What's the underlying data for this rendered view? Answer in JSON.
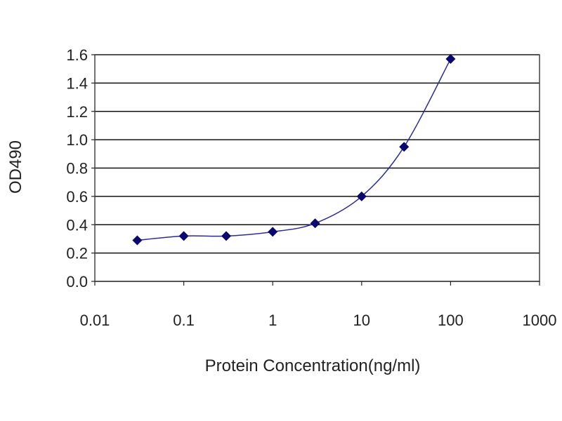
{
  "chart_data": {
    "type": "scatter",
    "xlabel": "Protein Concentration(ng/ml)",
    "ylabel": "OD490",
    "x_scale": "log",
    "xlim": [
      0.01,
      1000
    ],
    "ylim": [
      0.0,
      1.6
    ],
    "x_tick_labels": [
      "0.01",
      "0.1",
      "1",
      "10",
      "100",
      "1000"
    ],
    "x_tick_values": [
      0.01,
      0.1,
      1,
      10,
      100,
      1000
    ],
    "y_tick_labels": [
      "0.0",
      "0.2",
      "0.4",
      "0.6",
      "0.8",
      "1.0",
      "1.2",
      "1.4",
      "1.6"
    ],
    "y_tick_values": [
      0.0,
      0.2,
      0.4,
      0.6,
      0.8,
      1.0,
      1.2,
      1.4,
      1.6
    ],
    "grid": "horizontal",
    "legend": "none",
    "series": [
      {
        "x": [
          0.03,
          0.1,
          0.3,
          1,
          3,
          10,
          30,
          100
        ],
        "y": [
          0.29,
          0.32,
          0.32,
          0.35,
          0.41,
          0.6,
          0.95,
          1.57
        ],
        "marker": "diamond",
        "line": "smooth"
      }
    ],
    "colors": {
      "marker": "#0a0a6e",
      "line": "#2a2a9a",
      "grid": "#111111",
      "plot_border": "#444444"
    }
  }
}
